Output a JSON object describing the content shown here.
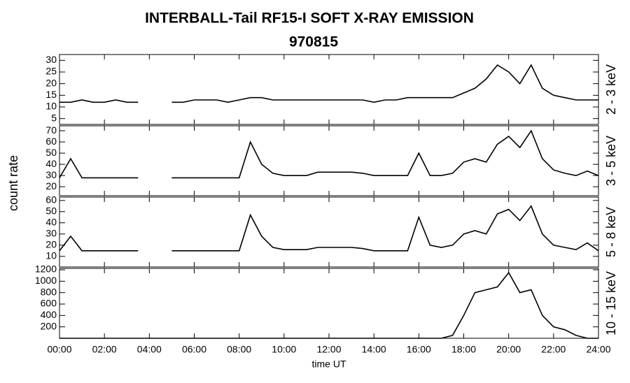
{
  "title": "INTERBALL-Tail RF15-I SOFT X-RAY EMISSION",
  "subtitle": "970815",
  "ylabel": "count rate",
  "chart_data": [
    {
      "type": "line",
      "xlim": [
        0,
        24
      ],
      "ylim": [
        2.5,
        32.5
      ],
      "yticks": [
        5,
        10,
        15,
        20,
        25,
        30
      ],
      "x": [
        0,
        0.5,
        1,
        1.5,
        2,
        2.5,
        3,
        3.5,
        4,
        4.5,
        5,
        5.5,
        6,
        6.5,
        7,
        7.5,
        8,
        8.5,
        9,
        9.5,
        10,
        10.5,
        11,
        11.5,
        12,
        12.5,
        13,
        13.5,
        14,
        14.5,
        15,
        15.5,
        16,
        16.5,
        17,
        17.5,
        18,
        18.5,
        19,
        19.5,
        20,
        20.5,
        21,
        21.5,
        22,
        22.5,
        23,
        23.5,
        24
      ],
      "series": [
        {
          "name": "2 - 3 keV",
          "color": "#000000",
          "values": [
            12,
            12,
            13,
            12,
            12,
            13,
            12,
            12,
            null,
            null,
            12,
            12,
            13,
            13,
            13,
            12,
            13,
            14,
            14,
            13,
            13,
            13,
            13,
            13,
            13,
            13,
            13,
            13,
            12,
            13,
            13,
            14,
            14,
            14,
            14,
            14,
            16,
            18,
            22,
            28,
            25,
            20,
            28,
            18,
            15,
            14,
            13,
            13,
            13
          ]
        }
      ]
    },
    {
      "type": "line",
      "xlim": [
        0,
        24
      ],
      "ylim": [
        12,
        74.4
      ],
      "yticks": [
        20,
        30,
        40,
        50,
        60,
        70
      ],
      "x": [
        0,
        0.5,
        1,
        1.5,
        2,
        2.5,
        3,
        3.5,
        4,
        4.5,
        5,
        5.5,
        6,
        6.5,
        7,
        7.5,
        8,
        8.5,
        9,
        9.5,
        10,
        10.5,
        11,
        11.5,
        12,
        12.5,
        13,
        13.5,
        14,
        14.5,
        15,
        15.5,
        16,
        16.5,
        17,
        17.5,
        18,
        18.5,
        19,
        19.5,
        20,
        20.5,
        21,
        21.5,
        22,
        22.5,
        23,
        23.5,
        24
      ],
      "series": [
        {
          "name": "3 - 5 keV",
          "color": "#000000",
          "values": [
            28,
            45,
            28,
            28,
            28,
            28,
            28,
            28,
            null,
            null,
            28,
            28,
            28,
            28,
            28,
            28,
            28,
            60,
            40,
            32,
            30,
            30,
            30,
            33,
            33,
            33,
            33,
            32,
            30,
            30,
            30,
            30,
            50,
            30,
            30,
            32,
            42,
            45,
            42,
            58,
            65,
            55,
            70,
            45,
            35,
            32,
            30,
            34,
            30
          ]
        }
      ]
    },
    {
      "type": "line",
      "xlim": [
        0,
        24
      ],
      "ylim": [
        0.5,
        63
      ],
      "yticks": [
        10,
        20,
        30,
        40,
        50,
        60
      ],
      "x": [
        0,
        0.5,
        1,
        1.5,
        2,
        2.5,
        3,
        3.5,
        4,
        4.5,
        5,
        5.5,
        6,
        6.5,
        7,
        7.5,
        8,
        8.5,
        9,
        9.5,
        10,
        10.5,
        11,
        11.5,
        12,
        12.5,
        13,
        13.5,
        14,
        14.5,
        15,
        15.5,
        16,
        16.5,
        17,
        17.5,
        18,
        18.5,
        19,
        19.5,
        20,
        20.5,
        21,
        21.5,
        22,
        22.5,
        23,
        23.5,
        24
      ],
      "series": [
        {
          "name": "5 - 8 keV",
          "color": "#000000",
          "values": [
            15,
            28,
            15,
            15,
            15,
            15,
            15,
            15,
            null,
            null,
            15,
            15,
            15,
            15,
            15,
            15,
            15,
            47,
            28,
            18,
            16,
            16,
            16,
            18,
            18,
            18,
            18,
            17,
            15,
            15,
            15,
            15,
            45,
            20,
            18,
            20,
            30,
            33,
            30,
            48,
            52,
            42,
            55,
            30,
            20,
            18,
            16,
            22,
            15
          ]
        }
      ]
    },
    {
      "type": "line",
      "xlim": [
        0,
        24
      ],
      "ylim": [
        0,
        1225
      ],
      "yticks": [
        200,
        400,
        600,
        800,
        1000,
        1200
      ],
      "xlabel": "time UT",
      "xticks": [
        {
          "value": 0,
          "label": "00:00"
        },
        {
          "value": 2,
          "label": "02:00"
        },
        {
          "value": 4,
          "label": "04:00"
        },
        {
          "value": 6,
          "label": "06:00"
        },
        {
          "value": 8,
          "label": "08:00"
        },
        {
          "value": 10,
          "label": "10:00"
        },
        {
          "value": 12,
          "label": "12:00"
        },
        {
          "value": 14,
          "label": "14:00"
        },
        {
          "value": 16,
          "label": "16:00"
        },
        {
          "value": 18,
          "label": "18:00"
        },
        {
          "value": 20,
          "label": "20:00"
        },
        {
          "value": 22,
          "label": "22:00"
        },
        {
          "value": 24,
          "label": "24:00"
        }
      ],
      "x": [
        0,
        0.5,
        1,
        1.5,
        2,
        2.5,
        3,
        3.5,
        4,
        4.5,
        5,
        5.5,
        6,
        6.5,
        7,
        7.5,
        8,
        8.5,
        9,
        9.5,
        10,
        10.5,
        11,
        11.5,
        12,
        12.5,
        13,
        13.5,
        14,
        14.5,
        15,
        15.5,
        16,
        16.5,
        17,
        17.5,
        18,
        18.5,
        19,
        19.5,
        20,
        20.5,
        21,
        21.5,
        22,
        22.5,
        23,
        23.5,
        24
      ],
      "series": [
        {
          "name": "10 - 15 keV",
          "color": "#000000",
          "values": [
            0,
            0,
            0,
            0,
            0,
            0,
            0,
            0,
            0,
            0,
            0,
            0,
            0,
            0,
            0,
            0,
            0,
            0,
            0,
            0,
            0,
            0,
            0,
            0,
            0,
            0,
            0,
            0,
            0,
            0,
            0,
            0,
            0,
            0,
            0,
            50,
            400,
            800,
            850,
            900,
            1150,
            800,
            850,
            400,
            200,
            150,
            50,
            0,
            0
          ]
        }
      ]
    }
  ]
}
